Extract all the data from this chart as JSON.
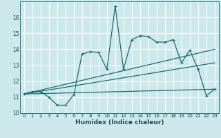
{
  "xlabel": "Humidex (Indice chaleur)",
  "xlim": [
    -0.5,
    23.5
  ],
  "ylim": [
    10,
    17
  ],
  "yticks": [
    10,
    11,
    12,
    13,
    14,
    15,
    16
  ],
  "xticks": [
    0,
    1,
    2,
    3,
    4,
    5,
    6,
    7,
    8,
    9,
    10,
    11,
    12,
    13,
    14,
    15,
    16,
    17,
    18,
    19,
    20,
    21,
    22,
    23
  ],
  "bg_color": "#cce8ea",
  "grid_color": "#ffffff",
  "line_color": "#1a6b6b",
  "line1_x": [
    0,
    1,
    2,
    3,
    4,
    5,
    6,
    7,
    8,
    9,
    10,
    11,
    12,
    13,
    14,
    15,
    16,
    17,
    18,
    19,
    20,
    21,
    22,
    23
  ],
  "line1_y": [
    11.2,
    11.35,
    11.35,
    11.0,
    10.5,
    10.5,
    11.15,
    13.7,
    13.85,
    13.8,
    12.75,
    16.7,
    12.75,
    14.6,
    14.85,
    14.8,
    14.45,
    14.45,
    14.6,
    13.15,
    13.95,
    12.75,
    11.1,
    11.5
  ],
  "line2_x": [
    0,
    23
  ],
  "line2_y": [
    11.2,
    14.0
  ],
  "line3_x": [
    0,
    23
  ],
  "line3_y": [
    11.2,
    13.15
  ],
  "line4_x": [
    0,
    23
  ],
  "line4_y": [
    11.2,
    11.5
  ]
}
